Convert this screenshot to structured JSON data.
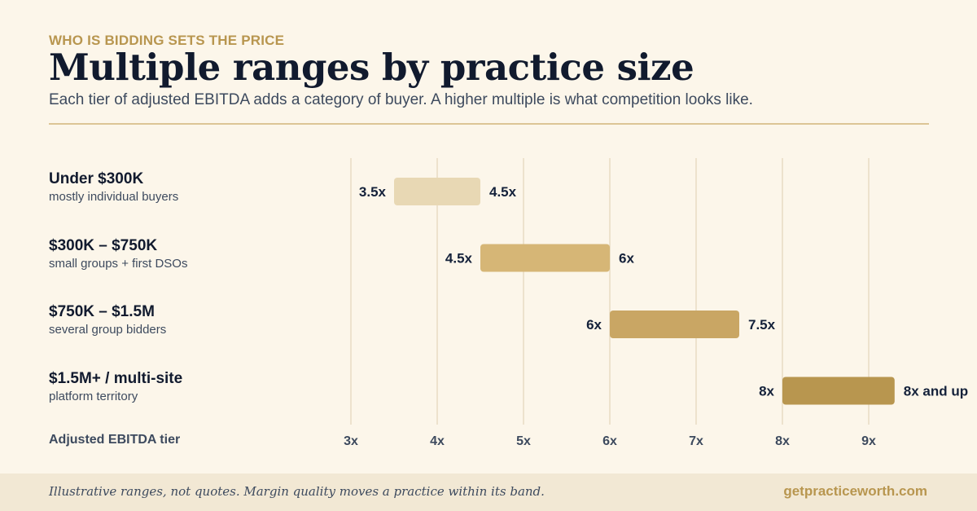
{
  "header": {
    "eyebrow": "WHO IS BIDDING SETS THE PRICE",
    "title": "Multiple ranges by practice size",
    "subtitle": "Each tier of adjusted EBITDA adds a category of buyer. A higher multiple is what competition looks like."
  },
  "footer": {
    "note": "Illustrative ranges, not quotes. Margin quality moves a practice within its band.",
    "site": "getpracticeworth.com"
  },
  "colors": {
    "background": "#fcf6ea",
    "accent": "#b8964f",
    "gridline": "#e8dcc3",
    "bar_tiers": [
      "#e8d8b4",
      "#d6b676",
      "#c9a664",
      "#b8964f"
    ]
  },
  "chart_data": {
    "type": "bar",
    "orientation": "horizontal-range",
    "xlabel": "Adjusted EBITDA tier",
    "xlim": [
      3,
      9.3
    ],
    "x_ticks": [
      3,
      4,
      5,
      6,
      7,
      8,
      9
    ],
    "x_tick_labels": [
      "3x",
      "4x",
      "5x",
      "6x",
      "7x",
      "8x",
      "9x"
    ],
    "grid": true,
    "categories": [
      {
        "label": "Under $300K",
        "sublabel": "mostly individual buyers",
        "low": 3.5,
        "high": 4.5,
        "low_label": "3.5x",
        "high_label": "4.5x"
      },
      {
        "label": "$300K – $750K",
        "sublabel": "small groups + first DSOs",
        "low": 4.5,
        "high": 6,
        "low_label": "4.5x",
        "high_label": "6x"
      },
      {
        "label": "$750K – $1.5M",
        "sublabel": "several group bidders",
        "low": 6,
        "high": 7.5,
        "low_label": "6x",
        "high_label": "7.5x"
      },
      {
        "label": "$1.5M+ / multi-site",
        "sublabel": "platform territory",
        "low": 8,
        "high": 9.3,
        "low_label": "8x",
        "high_label": "8x and up"
      }
    ]
  }
}
